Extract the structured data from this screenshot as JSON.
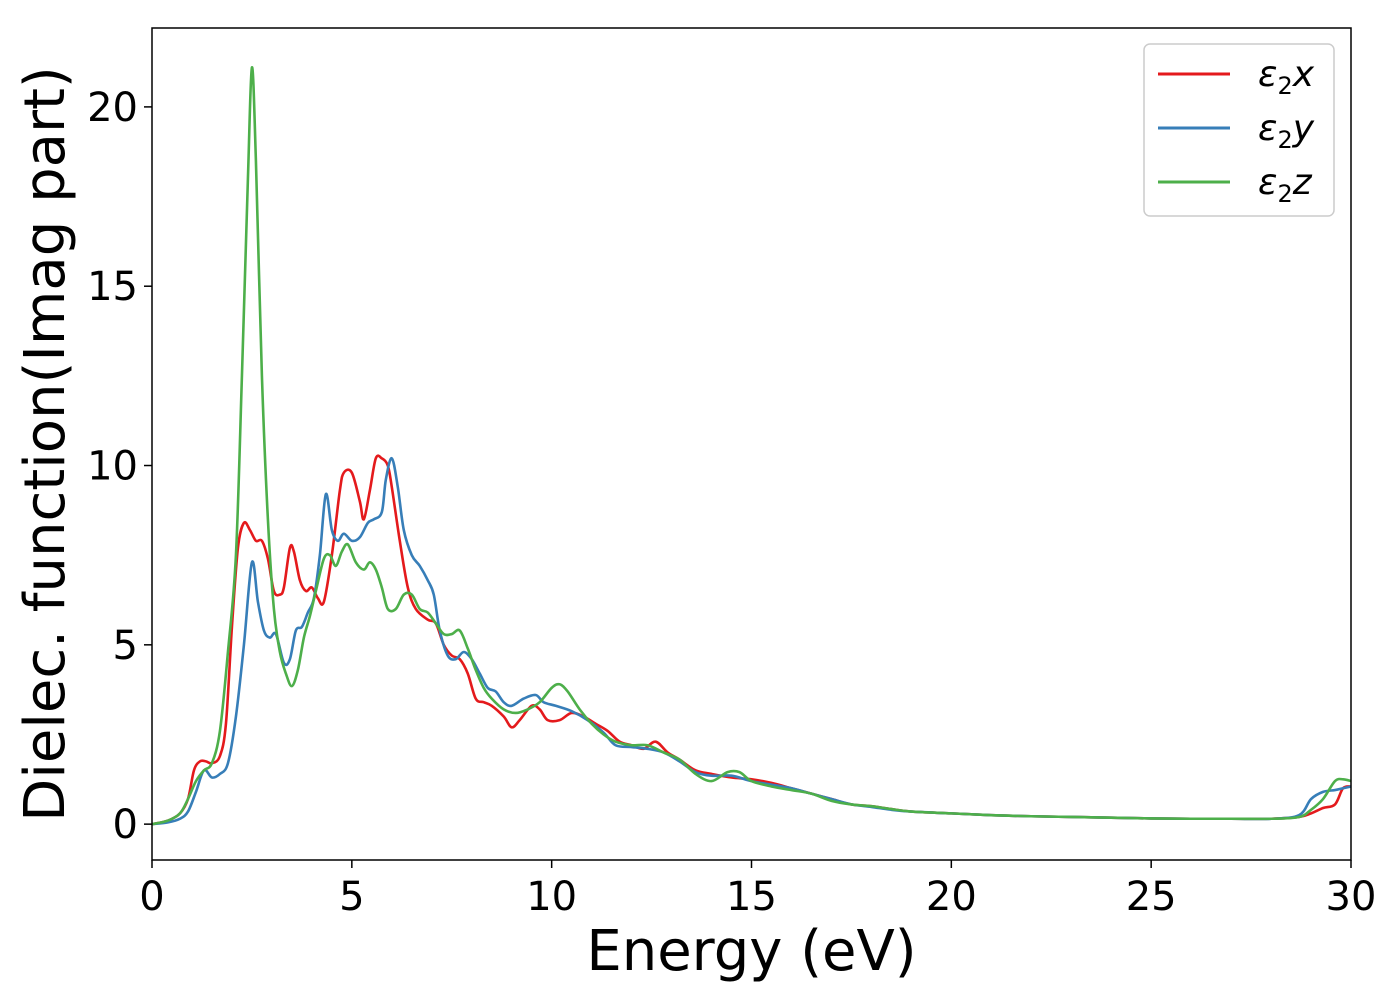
{
  "chart_data": {
    "type": "line",
    "title": "",
    "xlabel": "Energy (eV)",
    "ylabel": "Dielec. function(Imag part)",
    "xlim": [
      0,
      30
    ],
    "ylim": [
      -1.0,
      22.2
    ],
    "xticks": [
      0,
      5,
      10,
      15,
      20,
      25,
      30
    ],
    "yticks": [
      0,
      5,
      10,
      15,
      20
    ],
    "grid": false,
    "legend_position": "top-right",
    "series": [
      {
        "name": "ε₂x",
        "legend_base": "ε",
        "legend_sub": "2",
        "legend_tail": "x",
        "color": "#e41a1c",
        "points": [
          [
            0,
            0
          ],
          [
            0.4,
            0.1
          ],
          [
            0.7,
            0.3
          ],
          [
            0.9,
            0.7
          ],
          [
            1.05,
            1.5
          ],
          [
            1.2,
            1.75
          ],
          [
            1.35,
            1.75
          ],
          [
            1.5,
            1.7
          ],
          [
            1.7,
            1.9
          ],
          [
            1.85,
            2.8
          ],
          [
            2.0,
            5.5
          ],
          [
            2.15,
            7.7
          ],
          [
            2.3,
            8.4
          ],
          [
            2.45,
            8.2
          ],
          [
            2.6,
            7.9
          ],
          [
            2.75,
            7.9
          ],
          [
            2.9,
            7.4
          ],
          [
            3.05,
            6.5
          ],
          [
            3.2,
            6.4
          ],
          [
            3.3,
            6.6
          ],
          [
            3.45,
            7.7
          ],
          [
            3.55,
            7.6
          ],
          [
            3.7,
            6.8
          ],
          [
            3.85,
            6.5
          ],
          [
            4.0,
            6.6
          ],
          [
            4.15,
            6.3
          ],
          [
            4.3,
            6.2
          ],
          [
            4.5,
            7.5
          ],
          [
            4.7,
            9.3
          ],
          [
            4.8,
            9.8
          ],
          [
            5.0,
            9.8
          ],
          [
            5.2,
            9.0
          ],
          [
            5.3,
            8.5
          ],
          [
            5.45,
            9.3
          ],
          [
            5.6,
            10.2
          ],
          [
            5.75,
            10.2
          ],
          [
            5.9,
            10.0
          ],
          [
            6.0,
            9.4
          ],
          [
            6.2,
            7.9
          ],
          [
            6.4,
            6.6
          ],
          [
            6.6,
            6.0
          ],
          [
            6.9,
            5.7
          ],
          [
            7.1,
            5.6
          ],
          [
            7.3,
            5.0
          ],
          [
            7.5,
            4.7
          ],
          [
            7.7,
            4.6
          ],
          [
            7.9,
            4.2
          ],
          [
            8.1,
            3.5
          ],
          [
            8.3,
            3.4
          ],
          [
            8.5,
            3.3
          ],
          [
            8.8,
            3.0
          ],
          [
            9.0,
            2.7
          ],
          [
            9.2,
            2.9
          ],
          [
            9.5,
            3.3
          ],
          [
            9.7,
            3.2
          ],
          [
            9.9,
            2.9
          ],
          [
            10.2,
            2.9
          ],
          [
            10.5,
            3.1
          ],
          [
            10.8,
            3.0
          ],
          [
            11.1,
            2.8
          ],
          [
            11.4,
            2.6
          ],
          [
            11.7,
            2.3
          ],
          [
            12.0,
            2.2
          ],
          [
            12.3,
            2.1
          ],
          [
            12.6,
            2.3
          ],
          [
            12.9,
            2.0
          ],
          [
            13.2,
            1.8
          ],
          [
            13.6,
            1.5
          ],
          [
            14.0,
            1.4
          ],
          [
            14.5,
            1.3
          ],
          [
            15.0,
            1.25
          ],
          [
            15.5,
            1.15
          ],
          [
            16.0,
            1.0
          ],
          [
            16.5,
            0.85
          ],
          [
            17.0,
            0.7
          ],
          [
            17.5,
            0.55
          ],
          [
            18.0,
            0.5
          ],
          [
            18.5,
            0.42
          ],
          [
            19.0,
            0.35
          ],
          [
            20.0,
            0.3
          ],
          [
            21.0,
            0.25
          ],
          [
            22.0,
            0.22
          ],
          [
            23.0,
            0.2
          ],
          [
            24.0,
            0.18
          ],
          [
            25.0,
            0.16
          ],
          [
            26.0,
            0.15
          ],
          [
            27.0,
            0.15
          ],
          [
            28.0,
            0.15
          ],
          [
            28.7,
            0.2
          ],
          [
            29.0,
            0.3
          ],
          [
            29.3,
            0.45
          ],
          [
            29.6,
            0.55
          ],
          [
            29.8,
            1.0
          ],
          [
            30.0,
            1.05
          ]
        ]
      },
      {
        "name": "ε₂y",
        "legend_base": "ε",
        "legend_sub": "2",
        "legend_tail": "y",
        "color": "#377eb8",
        "points": [
          [
            0,
            0
          ],
          [
            0.4,
            0.05
          ],
          [
            0.7,
            0.15
          ],
          [
            0.9,
            0.35
          ],
          [
            1.1,
            0.9
          ],
          [
            1.3,
            1.5
          ],
          [
            1.5,
            1.3
          ],
          [
            1.7,
            1.4
          ],
          [
            1.9,
            1.7
          ],
          [
            2.1,
            3.0
          ],
          [
            2.3,
            5.0
          ],
          [
            2.5,
            7.3
          ],
          [
            2.65,
            6.2
          ],
          [
            2.8,
            5.4
          ],
          [
            2.95,
            5.2
          ],
          [
            3.1,
            5.3
          ],
          [
            3.3,
            4.5
          ],
          [
            3.45,
            4.6
          ],
          [
            3.6,
            5.4
          ],
          [
            3.75,
            5.5
          ],
          [
            3.9,
            5.9
          ],
          [
            4.05,
            6.3
          ],
          [
            4.2,
            7.5
          ],
          [
            4.35,
            9.2
          ],
          [
            4.5,
            8.2
          ],
          [
            4.65,
            7.9
          ],
          [
            4.8,
            8.1
          ],
          [
            5.0,
            7.9
          ],
          [
            5.2,
            8.0
          ],
          [
            5.4,
            8.4
          ],
          [
            5.55,
            8.5
          ],
          [
            5.75,
            8.7
          ],
          [
            5.85,
            9.6
          ],
          [
            6.0,
            10.2
          ],
          [
            6.15,
            9.4
          ],
          [
            6.3,
            8.2
          ],
          [
            6.5,
            7.5
          ],
          [
            6.7,
            7.2
          ],
          [
            6.9,
            6.8
          ],
          [
            7.05,
            6.4
          ],
          [
            7.2,
            5.4
          ],
          [
            7.4,
            4.7
          ],
          [
            7.6,
            4.6
          ],
          [
            7.8,
            4.8
          ],
          [
            8.0,
            4.6
          ],
          [
            8.2,
            4.2
          ],
          [
            8.4,
            3.8
          ],
          [
            8.6,
            3.7
          ],
          [
            8.8,
            3.4
          ],
          [
            9.0,
            3.3
          ],
          [
            9.3,
            3.5
          ],
          [
            9.6,
            3.6
          ],
          [
            9.8,
            3.4
          ],
          [
            10.1,
            3.3
          ],
          [
            10.5,
            3.15
          ],
          [
            10.9,
            2.9
          ],
          [
            11.3,
            2.55
          ],
          [
            11.6,
            2.2
          ],
          [
            12.0,
            2.15
          ],
          [
            12.4,
            2.1
          ],
          [
            12.8,
            2.0
          ],
          [
            13.2,
            1.75
          ],
          [
            13.6,
            1.45
          ],
          [
            14.0,
            1.35
          ],
          [
            14.5,
            1.35
          ],
          [
            15.0,
            1.2
          ],
          [
            15.5,
            1.1
          ],
          [
            16.0,
            1.0
          ],
          [
            16.5,
            0.85
          ],
          [
            17.0,
            0.7
          ],
          [
            17.5,
            0.55
          ],
          [
            18.0,
            0.48
          ],
          [
            18.5,
            0.4
          ],
          [
            19.0,
            0.35
          ],
          [
            20.0,
            0.3
          ],
          [
            21.0,
            0.25
          ],
          [
            22.0,
            0.22
          ],
          [
            23.0,
            0.2
          ],
          [
            24.0,
            0.18
          ],
          [
            25.0,
            0.16
          ],
          [
            26.0,
            0.15
          ],
          [
            27.0,
            0.15
          ],
          [
            28.0,
            0.15
          ],
          [
            28.7,
            0.25
          ],
          [
            29.0,
            0.7
          ],
          [
            29.3,
            0.9
          ],
          [
            29.6,
            0.95
          ],
          [
            29.8,
            1.0
          ],
          [
            30.0,
            1.05
          ]
        ]
      },
      {
        "name": "ε₂z",
        "legend_base": "ε",
        "legend_sub": "2",
        "legend_tail": "z",
        "color": "#4daf4a",
        "points": [
          [
            0,
            0
          ],
          [
            0.4,
            0.1
          ],
          [
            0.7,
            0.3
          ],
          [
            0.9,
            0.7
          ],
          [
            1.1,
            1.2
          ],
          [
            1.3,
            1.5
          ],
          [
            1.5,
            1.7
          ],
          [
            1.7,
            2.6
          ],
          [
            1.9,
            4.8
          ],
          [
            2.1,
            7.5
          ],
          [
            2.25,
            12.5
          ],
          [
            2.4,
            18.0
          ],
          [
            2.5,
            21.1
          ],
          [
            2.6,
            18.5
          ],
          [
            2.75,
            12.5
          ],
          [
            2.9,
            8.5
          ],
          [
            3.05,
            6.0
          ],
          [
            3.2,
            4.8
          ],
          [
            3.35,
            4.2
          ],
          [
            3.5,
            3.85
          ],
          [
            3.65,
            4.3
          ],
          [
            3.8,
            5.2
          ],
          [
            3.95,
            5.8
          ],
          [
            4.1,
            6.5
          ],
          [
            4.3,
            7.4
          ],
          [
            4.45,
            7.5
          ],
          [
            4.6,
            7.2
          ],
          [
            4.75,
            7.6
          ],
          [
            4.9,
            7.8
          ],
          [
            5.1,
            7.3
          ],
          [
            5.3,
            7.1
          ],
          [
            5.45,
            7.3
          ],
          [
            5.6,
            7.1
          ],
          [
            5.75,
            6.6
          ],
          [
            5.9,
            6.0
          ],
          [
            6.1,
            6.0
          ],
          [
            6.3,
            6.4
          ],
          [
            6.5,
            6.4
          ],
          [
            6.7,
            6.0
          ],
          [
            6.9,
            5.9
          ],
          [
            7.1,
            5.6
          ],
          [
            7.3,
            5.3
          ],
          [
            7.5,
            5.3
          ],
          [
            7.7,
            5.4
          ],
          [
            7.9,
            4.9
          ],
          [
            8.1,
            4.3
          ],
          [
            8.3,
            3.8
          ],
          [
            8.5,
            3.5
          ],
          [
            8.8,
            3.2
          ],
          [
            9.1,
            3.1
          ],
          [
            9.4,
            3.2
          ],
          [
            9.7,
            3.4
          ],
          [
            10.0,
            3.8
          ],
          [
            10.2,
            3.9
          ],
          [
            10.4,
            3.7
          ],
          [
            10.7,
            3.2
          ],
          [
            11.0,
            2.8
          ],
          [
            11.3,
            2.5
          ],
          [
            11.6,
            2.3
          ],
          [
            12.0,
            2.2
          ],
          [
            12.4,
            2.2
          ],
          [
            12.8,
            2.0
          ],
          [
            13.2,
            1.8
          ],
          [
            13.6,
            1.4
          ],
          [
            14.0,
            1.2
          ],
          [
            14.4,
            1.45
          ],
          [
            14.7,
            1.45
          ],
          [
            15.0,
            1.2
          ],
          [
            15.5,
            1.05
          ],
          [
            16.0,
            0.95
          ],
          [
            16.5,
            0.85
          ],
          [
            17.0,
            0.65
          ],
          [
            17.5,
            0.55
          ],
          [
            18.0,
            0.5
          ],
          [
            18.5,
            0.42
          ],
          [
            19.0,
            0.35
          ],
          [
            20.0,
            0.3
          ],
          [
            21.0,
            0.25
          ],
          [
            22.0,
            0.22
          ],
          [
            23.0,
            0.2
          ],
          [
            24.0,
            0.18
          ],
          [
            25.0,
            0.16
          ],
          [
            26.0,
            0.15
          ],
          [
            27.0,
            0.15
          ],
          [
            28.0,
            0.15
          ],
          [
            28.7,
            0.2
          ],
          [
            29.0,
            0.4
          ],
          [
            29.3,
            0.7
          ],
          [
            29.6,
            1.2
          ],
          [
            29.8,
            1.25
          ],
          [
            30.0,
            1.2
          ]
        ]
      }
    ]
  }
}
